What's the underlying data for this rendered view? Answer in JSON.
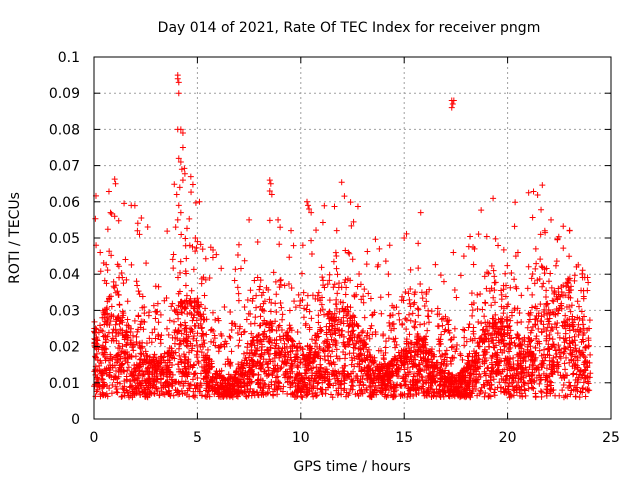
{
  "chart_data": {
    "type": "scatter",
    "title": "Day 014 of 2021, Rate Of TEC Index for receiver pngm",
    "xlabel": "GPS time / hours",
    "ylabel": "ROTI / TECUs",
    "xlim": [
      0,
      25
    ],
    "ylim": [
      0,
      0.1
    ],
    "x_ticks": [
      "0",
      "5",
      "10",
      "15",
      "20",
      "25"
    ],
    "y_ticks": [
      "0",
      "0.01",
      "0.02",
      "0.03",
      "0.04",
      "0.05",
      "0.06",
      "0.07",
      "0.08",
      "0.09",
      "0.1"
    ],
    "x_tick_values": [
      0,
      5,
      10,
      15,
      20,
      25
    ],
    "y_tick_values": [
      0,
      0.01,
      0.02,
      0.03,
      0.04,
      0.05,
      0.06,
      0.07,
      0.08,
      0.09,
      0.1
    ],
    "grid": true,
    "marker": "+",
    "color": "#ff0000",
    "series": [
      {
        "name": "ROTI",
        "description_of_bulk": "dense band of points between 0.004 and ~0.04 TECU/s from 0 to 24 h",
        "band": {
          "x_start": 0.0,
          "x_end": 24.0,
          "y_min": 0.004,
          "y_typical_max": 0.035
        },
        "highlights": [
          {
            "x": 4.05,
            "y": 0.095
          },
          {
            "x": 4.05,
            "y": 0.094
          },
          {
            "x": 4.1,
            "y": 0.093
          },
          {
            "x": 4.1,
            "y": 0.09
          },
          {
            "x": 4.05,
            "y": 0.08
          },
          {
            "x": 4.2,
            "y": 0.08
          },
          {
            "x": 4.3,
            "y": 0.079
          },
          {
            "x": 4.3,
            "y": 0.075
          },
          {
            "x": 4.1,
            "y": 0.072
          },
          {
            "x": 4.2,
            "y": 0.071
          },
          {
            "x": 4.25,
            "y": 0.069
          },
          {
            "x": 4.3,
            "y": 0.066
          },
          {
            "x": 4.15,
            "y": 0.064
          },
          {
            "x": 4.0,
            "y": 0.062
          },
          {
            "x": 4.1,
            "y": 0.059
          },
          {
            "x": 4.2,
            "y": 0.057
          },
          {
            "x": 4.05,
            "y": 0.055
          },
          {
            "x": 3.95,
            "y": 0.053
          },
          {
            "x": 8.5,
            "y": 0.066
          },
          {
            "x": 8.55,
            "y": 0.065
          },
          {
            "x": 8.5,
            "y": 0.063
          },
          {
            "x": 8.6,
            "y": 0.062
          },
          {
            "x": 10.3,
            "y": 0.06
          },
          {
            "x": 10.35,
            "y": 0.059
          },
          {
            "x": 10.4,
            "y": 0.058
          },
          {
            "x": 10.5,
            "y": 0.057
          },
          {
            "x": 5.1,
            "y": 0.06
          },
          {
            "x": 1.8,
            "y": 0.059
          },
          {
            "x": 17.3,
            "y": 0.088
          },
          {
            "x": 17.35,
            "y": 0.087
          },
          {
            "x": 17.4,
            "y": 0.088
          },
          {
            "x": 17.3,
            "y": 0.086
          },
          {
            "x": 15.8,
            "y": 0.057
          },
          {
            "x": 0.8,
            "y": 0.057
          },
          {
            "x": 1.0,
            "y": 0.056
          },
          {
            "x": 7.5,
            "y": 0.055
          },
          {
            "x": 8.9,
            "y": 0.055
          },
          {
            "x": 22.1,
            "y": 0.055
          },
          {
            "x": 21.8,
            "y": 0.052
          },
          {
            "x": 21.6,
            "y": 0.051
          },
          {
            "x": 23.0,
            "y": 0.052
          },
          {
            "x": 2.1,
            "y": 0.052
          },
          {
            "x": 2.2,
            "y": 0.051
          },
          {
            "x": 4.9,
            "y": 0.05
          },
          {
            "x": 5.0,
            "y": 0.049
          },
          {
            "x": 10.1,
            "y": 0.048
          },
          {
            "x": 13.8,
            "y": 0.047
          },
          {
            "x": 14.3,
            "y": 0.048
          },
          {
            "x": 20.4,
            "y": 0.045
          },
          {
            "x": 20.5,
            "y": 0.046
          },
          {
            "x": 18.4,
            "y": 0.047
          },
          {
            "x": 12.3,
            "y": 0.046
          },
          {
            "x": 0.1,
            "y": 0.048
          },
          {
            "x": 0.3,
            "y": 0.046
          }
        ]
      }
    ]
  }
}
